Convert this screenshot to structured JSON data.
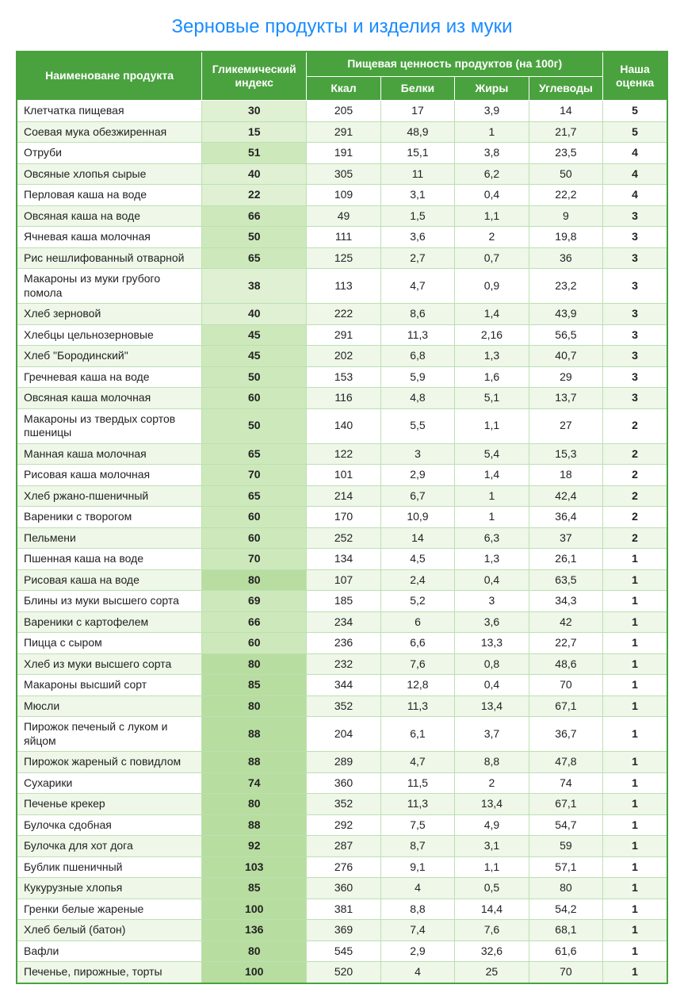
{
  "title": "Зерновые продукты и изделия из муки",
  "header": {
    "name": "Наименоване продукта",
    "gi": "Гликемический индекс",
    "nutritionGroup": "Пищевая ценность продуктов (на 100г)",
    "kcal": "Ккал",
    "protein": "Белки",
    "fat": "Жиры",
    "carbs": "Углеводы",
    "rating": "Наша оценка"
  },
  "colors": {
    "headerBg": "#4aa23f",
    "headerText": "#ffffff",
    "rowEvenBase": "#eef7e8",
    "rowOddBase": "#ffffff",
    "giShadeLight": "#dff0d3",
    "giShadeMid": "#cde9bb",
    "giShadeDark": "#b8dda0",
    "border": "#bce0b1",
    "title": "#1a8cff"
  },
  "giThresholds": {
    "lowMax": 40,
    "midMax": 70
  },
  "rows": [
    {
      "name": "Клетчатка пищевая",
      "gi": "30",
      "kcal": "205",
      "protein": "17",
      "fat": "3,9",
      "carbs": "14",
      "rating": "5"
    },
    {
      "name": "Соевая мука обезжиренная",
      "gi": "15",
      "kcal": "291",
      "protein": "48,9",
      "fat": "1",
      "carbs": "21,7",
      "rating": "5"
    },
    {
      "name": "Отруби",
      "gi": "51",
      "kcal": "191",
      "protein": "15,1",
      "fat": "3,8",
      "carbs": "23,5",
      "rating": "4"
    },
    {
      "name": "Овсяные хлопья сырые",
      "gi": "40",
      "kcal": "305",
      "protein": "11",
      "fat": "6,2",
      "carbs": "50",
      "rating": "4"
    },
    {
      "name": "Перловая каша на воде",
      "gi": "22",
      "kcal": "109",
      "protein": "3,1",
      "fat": "0,4",
      "carbs": "22,2",
      "rating": "4"
    },
    {
      "name": "Овсяная каша на воде",
      "gi": "66",
      "kcal": "49",
      "protein": "1,5",
      "fat": "1,1",
      "carbs": "9",
      "rating": "3"
    },
    {
      "name": "Ячневая каша молочная",
      "gi": "50",
      "kcal": "111",
      "protein": "3,6",
      "fat": "2",
      "carbs": "19,8",
      "rating": "3"
    },
    {
      "name": "Рис нешлифованный отварной",
      "gi": "65",
      "kcal": "125",
      "protein": "2,7",
      "fat": "0,7",
      "carbs": "36",
      "rating": "3"
    },
    {
      "name": "Макароны из муки грубого помола",
      "gi": "38",
      "kcal": "113",
      "protein": "4,7",
      "fat": "0,9",
      "carbs": "23,2",
      "rating": "3"
    },
    {
      "name": "Хлеб зерновой",
      "gi": "40",
      "kcal": "222",
      "protein": "8,6",
      "fat": "1,4",
      "carbs": "43,9",
      "rating": "3"
    },
    {
      "name": "Хлебцы цельнозерновые",
      "gi": "45",
      "kcal": "291",
      "protein": "11,3",
      "fat": "2,16",
      "carbs": "56,5",
      "rating": "3"
    },
    {
      "name": "Хлеб \"Бородинский\"",
      "gi": "45",
      "kcal": "202",
      "protein": "6,8",
      "fat": "1,3",
      "carbs": "40,7",
      "rating": "3"
    },
    {
      "name": "Гречневая каша на воде",
      "gi": "50",
      "kcal": "153",
      "protein": "5,9",
      "fat": "1,6",
      "carbs": "29",
      "rating": "3"
    },
    {
      "name": "Овсяная каша молочная",
      "gi": "60",
      "kcal": "116",
      "protein": "4,8",
      "fat": "5,1",
      "carbs": "13,7",
      "rating": "3"
    },
    {
      "name": "Макароны из твердых сортов пшеницы",
      "gi": "50",
      "kcal": "140",
      "protein": "5,5",
      "fat": "1,1",
      "carbs": "27",
      "rating": "2"
    },
    {
      "name": "Манная каша молочная",
      "gi": "65",
      "kcal": "122",
      "protein": "3",
      "fat": "5,4",
      "carbs": "15,3",
      "rating": "2"
    },
    {
      "name": "Рисовая каша молочная",
      "gi": "70",
      "kcal": "101",
      "protein": "2,9",
      "fat": "1,4",
      "carbs": "18",
      "rating": "2"
    },
    {
      "name": "Хлеб ржано-пшеничный",
      "gi": "65",
      "kcal": "214",
      "protein": "6,7",
      "fat": "1",
      "carbs": "42,4",
      "rating": "2"
    },
    {
      "name": "Вареники с творогом",
      "gi": "60",
      "kcal": "170",
      "protein": "10,9",
      "fat": "1",
      "carbs": "36,4",
      "rating": "2"
    },
    {
      "name": "Пельмени",
      "gi": "60",
      "kcal": "252",
      "protein": "14",
      "fat": "6,3",
      "carbs": "37",
      "rating": "2"
    },
    {
      "name": "Пшенная каша на воде",
      "gi": "70",
      "kcal": "134",
      "protein": "4,5",
      "fat": "1,3",
      "carbs": "26,1",
      "rating": "1"
    },
    {
      "name": "Рисовая каша на воде",
      "gi": "80",
      "kcal": "107",
      "protein": "2,4",
      "fat": "0,4",
      "carbs": "63,5",
      "rating": "1"
    },
    {
      "name": "Блины из муки высшего сорта",
      "gi": "69",
      "kcal": "185",
      "protein": "5,2",
      "fat": "3",
      "carbs": "34,3",
      "rating": "1"
    },
    {
      "name": "Вареники с картофелем",
      "gi": "66",
      "kcal": "234",
      "protein": "6",
      "fat": "3,6",
      "carbs": "42",
      "rating": "1"
    },
    {
      "name": "Пицца с сыром",
      "gi": "60",
      "kcal": "236",
      "protein": "6,6",
      "fat": "13,3",
      "carbs": "22,7",
      "rating": "1"
    },
    {
      "name": "Хлеб из муки высшего сорта",
      "gi": "80",
      "kcal": "232",
      "protein": "7,6",
      "fat": "0,8",
      "carbs": "48,6",
      "rating": "1"
    },
    {
      "name": "Макароны высший сорт",
      "gi": "85",
      "kcal": "344",
      "protein": "12,8",
      "fat": "0,4",
      "carbs": "70",
      "rating": "1"
    },
    {
      "name": "Мюсли",
      "gi": "80",
      "kcal": "352",
      "protein": "11,3",
      "fat": "13,4",
      "carbs": "67,1",
      "rating": "1"
    },
    {
      "name": "Пирожок печеный с луком и яйцом",
      "gi": "88",
      "kcal": "204",
      "protein": "6,1",
      "fat": "3,7",
      "carbs": "36,7",
      "rating": "1"
    },
    {
      "name": "Пирожок жареный с повидлом",
      "gi": "88",
      "kcal": "289",
      "protein": "4,7",
      "fat": "8,8",
      "carbs": "47,8",
      "rating": "1"
    },
    {
      "name": "Сухарики",
      "gi": "74",
      "kcal": "360",
      "protein": "11,5",
      "fat": "2",
      "carbs": "74",
      "rating": "1"
    },
    {
      "name": "Печенье крекер",
      "gi": "80",
      "kcal": "352",
      "protein": "11,3",
      "fat": "13,4",
      "carbs": "67,1",
      "rating": "1"
    },
    {
      "name": "Булочка сдобная",
      "gi": "88",
      "kcal": "292",
      "protein": "7,5",
      "fat": "4,9",
      "carbs": "54,7",
      "rating": "1"
    },
    {
      "name": "Булочка для хот дога",
      "gi": "92",
      "kcal": "287",
      "protein": "8,7",
      "fat": "3,1",
      "carbs": "59",
      "rating": "1"
    },
    {
      "name": "Бублик пшеничный",
      "gi": "103",
      "kcal": "276",
      "protein": "9,1",
      "fat": "1,1",
      "carbs": "57,1",
      "rating": "1"
    },
    {
      "name": "Кукурузные хлопья",
      "gi": "85",
      "kcal": "360",
      "protein": "4",
      "fat": "0,5",
      "carbs": "80",
      "rating": "1"
    },
    {
      "name": "Гренки белые жареные",
      "gi": "100",
      "kcal": "381",
      "protein": "8,8",
      "fat": "14,4",
      "carbs": "54,2",
      "rating": "1"
    },
    {
      "name": "Хлеб белый (батон)",
      "gi": "136",
      "kcal": "369",
      "protein": "7,4",
      "fat": "7,6",
      "carbs": "68,1",
      "rating": "1"
    },
    {
      "name": "Вафли",
      "gi": "80",
      "kcal": "545",
      "protein": "2,9",
      "fat": "32,6",
      "carbs": "61,6",
      "rating": "1"
    },
    {
      "name": "Печенье, пирожные, торты",
      "gi": "100",
      "kcal": "520",
      "protein": "4",
      "fat": "25",
      "carbs": "70",
      "rating": "1"
    }
  ]
}
